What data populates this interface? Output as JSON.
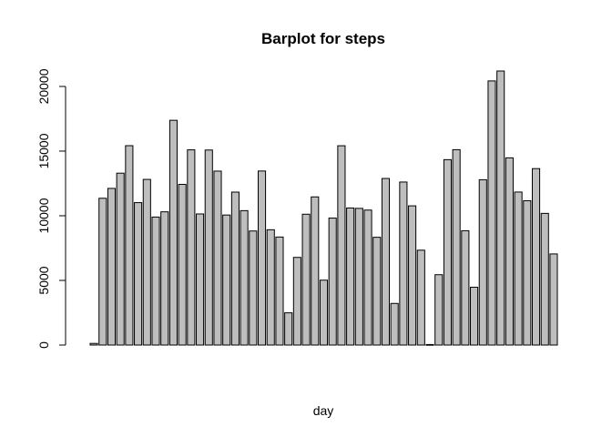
{
  "chart_data": {
    "type": "bar",
    "title": "Barplot for steps",
    "xlabel": "day",
    "ylabel": "",
    "ylim": [
      0,
      21194
    ],
    "yticks": [
      0,
      5000,
      10000,
      15000,
      20000
    ],
    "bar_fill": "#bebebe",
    "bar_stroke": "#000000",
    "values": [
      126,
      11352,
      12116,
      13294,
      15420,
      11015,
      12811,
      9900,
      10304,
      17382,
      12426,
      15098,
      10139,
      15084,
      13452,
      10056,
      11829,
      10395,
      8821,
      13460,
      8918,
      8355,
      2492,
      6778,
      10119,
      11458,
      5018,
      9819,
      15414,
      10600,
      10571,
      10439,
      8334,
      12883,
      3219,
      12608,
      10765,
      7336,
      41,
      5441,
      14339,
      15110,
      8841,
      4472,
      12787,
      20427,
      21194,
      14478,
      11834,
      11162,
      13646,
      10183,
      7047
    ]
  }
}
